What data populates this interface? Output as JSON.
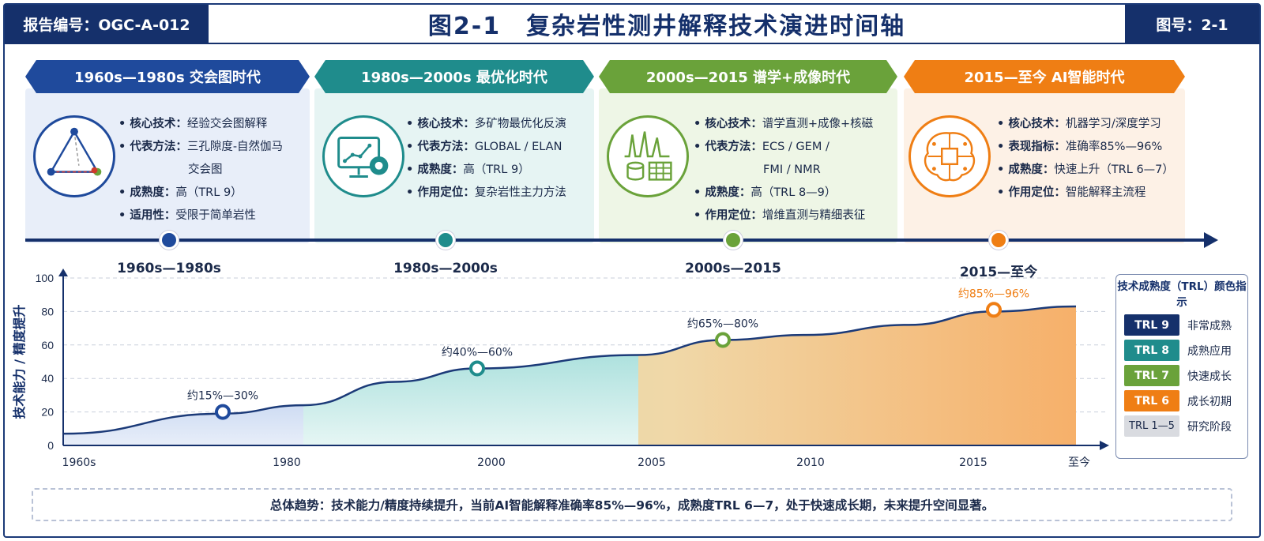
{
  "header": {
    "report_no": "报告编号：OGC-A-012",
    "title": "图2-1　复杂岩性测井解释技术演进时间轴",
    "figure_no": "图号：2-1"
  },
  "eras": [
    {
      "heading": "1960s—1980s 交会图时代",
      "color": "#1f4a9c",
      "panel_bg": "#e8eef9",
      "icon": "crossplot-triangle-icon",
      "rows": [
        {
          "k": "核心技术：",
          "v": "经验交会图解释"
        },
        {
          "k": "代表方法：",
          "v": "三孔隙度-自然伽马"
        },
        {
          "k": "",
          "v": "交会图"
        },
        {
          "k": "成熟度：",
          "v": "高（TRL 9）"
        },
        {
          "k": "适用性：",
          "v": "受限于简单岩性"
        }
      ],
      "timeline_label": "1960s—1980s"
    },
    {
      "heading": "1980s—2000s 最优化时代",
      "color": "#1f8c8c",
      "panel_bg": "#e6f4f3",
      "icon": "monitor-gear-icon",
      "rows": [
        {
          "k": "核心技术：",
          "v": "多矿物最优化反演"
        },
        {
          "k": "代表方法：",
          "v": "GLOBAL / ELAN"
        },
        {
          "k": "成熟度：",
          "v": "高（TRL 9）"
        },
        {
          "k": "作用定位：",
          "v": "复杂岩性主力方法"
        }
      ],
      "timeline_label": "1980s—2000s"
    },
    {
      "heading": "2000s—2015 谱学+成像时代",
      "color": "#6aa23a",
      "panel_bg": "#eef6e6",
      "icon": "spectrum-database-icon",
      "rows": [
        {
          "k": "核心技术：",
          "v": "谱学直测+成像+核磁"
        },
        {
          "k": "代表方法：",
          "v": "ECS / GEM /"
        },
        {
          "k": "",
          "v": "FMI / NMR"
        },
        {
          "k": "成熟度：",
          "v": "高（TRL 8—9）"
        },
        {
          "k": "作用定位：",
          "v": "增维直测与精细表征"
        }
      ],
      "timeline_label": "2000s—2015"
    },
    {
      "heading": "2015—至今 AI智能时代",
      "color": "#ef7e14",
      "panel_bg": "#fdf1e6",
      "icon": "ai-brain-chip-icon",
      "rows": [
        {
          "k": "核心技术：",
          "v": "机器学习/深度学习"
        },
        {
          "k": "表现指标：",
          "v": "准确率85%—96%"
        },
        {
          "k": "成熟度：",
          "v": "快速上升（TRL 6—7）"
        },
        {
          "k": "作用定位：",
          "v": "智能解释主流程"
        }
      ],
      "timeline_label": "2015—至今"
    }
  ],
  "chart_data": {
    "type": "area",
    "ylabel": "技术能力 / 精度提升",
    "ylim": [
      0,
      100
    ],
    "yticks": [
      0,
      20,
      40,
      60,
      80,
      100
    ],
    "x_tick_labels": [
      "1960s",
      "1980",
      "2000",
      "2005",
      "2010",
      "2015",
      "至今"
    ],
    "grid": "horizontal dashed",
    "curve": [
      {
        "x": "1960s",
        "y": 7
      },
      {
        "x": "1970s",
        "y": 19
      },
      {
        "x": "1980",
        "y": 24
      },
      {
        "x": "1990",
        "y": 38
      },
      {
        "x": "2000",
        "y": 46
      },
      {
        "x": "2005",
        "y": 54
      },
      {
        "x": "2007",
        "y": 63
      },
      {
        "x": "2010",
        "y": 66
      },
      {
        "x": "2013",
        "y": 72
      },
      {
        "x": "2015",
        "y": 80
      },
      {
        "x": "至今",
        "y": 83
      }
    ],
    "annotations": [
      {
        "label": "约15%—30%",
        "y": 20,
        "color": "#1f4a9c"
      },
      {
        "label": "约40%—60%",
        "y": 46,
        "color": "#1f8c8c"
      },
      {
        "label": "约65%—80%",
        "y": 63,
        "color": "#6aa23a"
      },
      {
        "label": "约85%—96%",
        "y": 81,
        "color": "#ef7e14"
      }
    ],
    "legend_position": "right"
  },
  "legend": {
    "title": "技术成熟度（TRL）颜色指示",
    "items": [
      {
        "badge": "TRL 9",
        "label": "非常成熟",
        "color": "#15306b"
      },
      {
        "badge": "TRL 8",
        "label": "成熟应用",
        "color": "#1f8c8c"
      },
      {
        "badge": "TRL 7",
        "label": "快速成长",
        "color": "#6aa23a"
      },
      {
        "badge": "TRL 6",
        "label": "成长初期",
        "color": "#ef7e14"
      },
      {
        "badge": "TRL 1—5",
        "label": "研究阶段",
        "color": "#d9dbe0"
      }
    ]
  },
  "footer": "总体趋势：技术能力/精度持续提升，当前AI智能解释准确率85%—96%，成熟度TRL 6—7，处于快速成长期，未来提升空间显著。"
}
